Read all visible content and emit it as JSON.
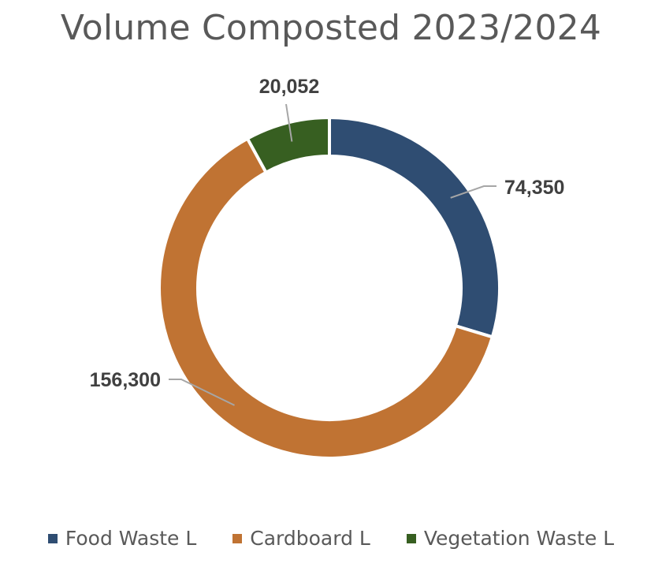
{
  "chart_data": {
    "type": "pie",
    "variant": "donut",
    "title": "Volume Composted 2023/2024",
    "categories": [
      "Food Waste L",
      "Cardboard L",
      "Vegetation Waste L"
    ],
    "values": [
      74350,
      156300,
      20052
    ],
    "value_labels": [
      "74,350",
      "156,300",
      "20,052"
    ],
    "colors": [
      "#2F4D72",
      "#C07333",
      "#375F21"
    ],
    "legend_position": "bottom",
    "start_angle": "12 o'clock, clockwise",
    "leader_line_color": "#A6A6A6"
  }
}
